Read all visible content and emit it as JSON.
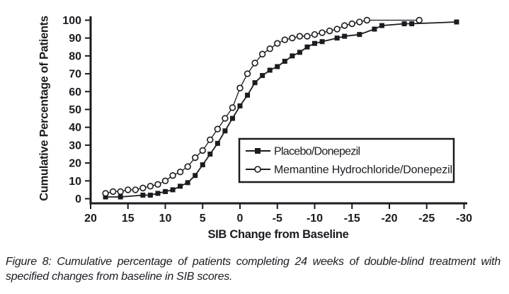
{
  "figure": {
    "caption": "Figure 8: Cumulative percentage of patients completing 24 weeks of double-blind treatment with specified changes from baseline in SIB scores."
  },
  "chart_data": {
    "type": "line",
    "title": "",
    "xlabel": "SIB Change from Baseline",
    "ylabel": "Cumulative Percentage of Patients",
    "x_ticks": [
      20,
      15,
      10,
      5,
      0,
      -5,
      -10,
      -15,
      -20,
      -25,
      -30
    ],
    "y_ticks": [
      0,
      10,
      20,
      30,
      40,
      50,
      60,
      70,
      80,
      90,
      100
    ],
    "xlim": [
      20,
      -30
    ],
    "ylim": [
      0,
      100
    ],
    "x_axis_reversed": true,
    "grid": false,
    "legend_position": "inside-lower-right",
    "line_color": "#1b1b20",
    "background_color": "#ffffff",
    "series": [
      {
        "name": "Placebo/Donepezil",
        "marker": "filled-square",
        "x": [
          18,
          16,
          13,
          12,
          11,
          10,
          9,
          8,
          7,
          6,
          5,
          4,
          3,
          2,
          1,
          0,
          -1,
          -2,
          -3,
          -4,
          -5,
          -6,
          -7,
          -8,
          -9,
          -10,
          -11,
          -13,
          -14,
          -16,
          -18,
          -19,
          -22,
          -23,
          -29
        ],
        "y": [
          1,
          1,
          2,
          2,
          3,
          4,
          5,
          7,
          9,
          13,
          19,
          25,
          31,
          38,
          45,
          52,
          58,
          65,
          69,
          72,
          74,
          77,
          80,
          82,
          85,
          87,
          88,
          90,
          91,
          92,
          95,
          97,
          98,
          98,
          99
        ]
      },
      {
        "name": "Memantine Hydrochloride/Donepezil",
        "marker": "open-circle",
        "x": [
          18,
          17,
          16,
          15,
          14,
          13,
          12,
          11,
          10,
          9,
          8,
          7,
          6,
          5,
          4,
          3,
          2,
          1,
          0,
          -1,
          -2,
          -3,
          -4,
          -5,
          -6,
          -7,
          -8,
          -9,
          -10,
          -11,
          -12,
          -13,
          -14,
          -15,
          -16,
          -17,
          -24
        ],
        "y": [
          3,
          4,
          4,
          5,
          5,
          6,
          7,
          8,
          10,
          13,
          15,
          18,
          23,
          27,
          33,
          39,
          45,
          51,
          62,
          70,
          76,
          81,
          84,
          87,
          89,
          90,
          91,
          91,
          92,
          93,
          94,
          95,
          97,
          98,
          99,
          100,
          100
        ]
      }
    ]
  }
}
